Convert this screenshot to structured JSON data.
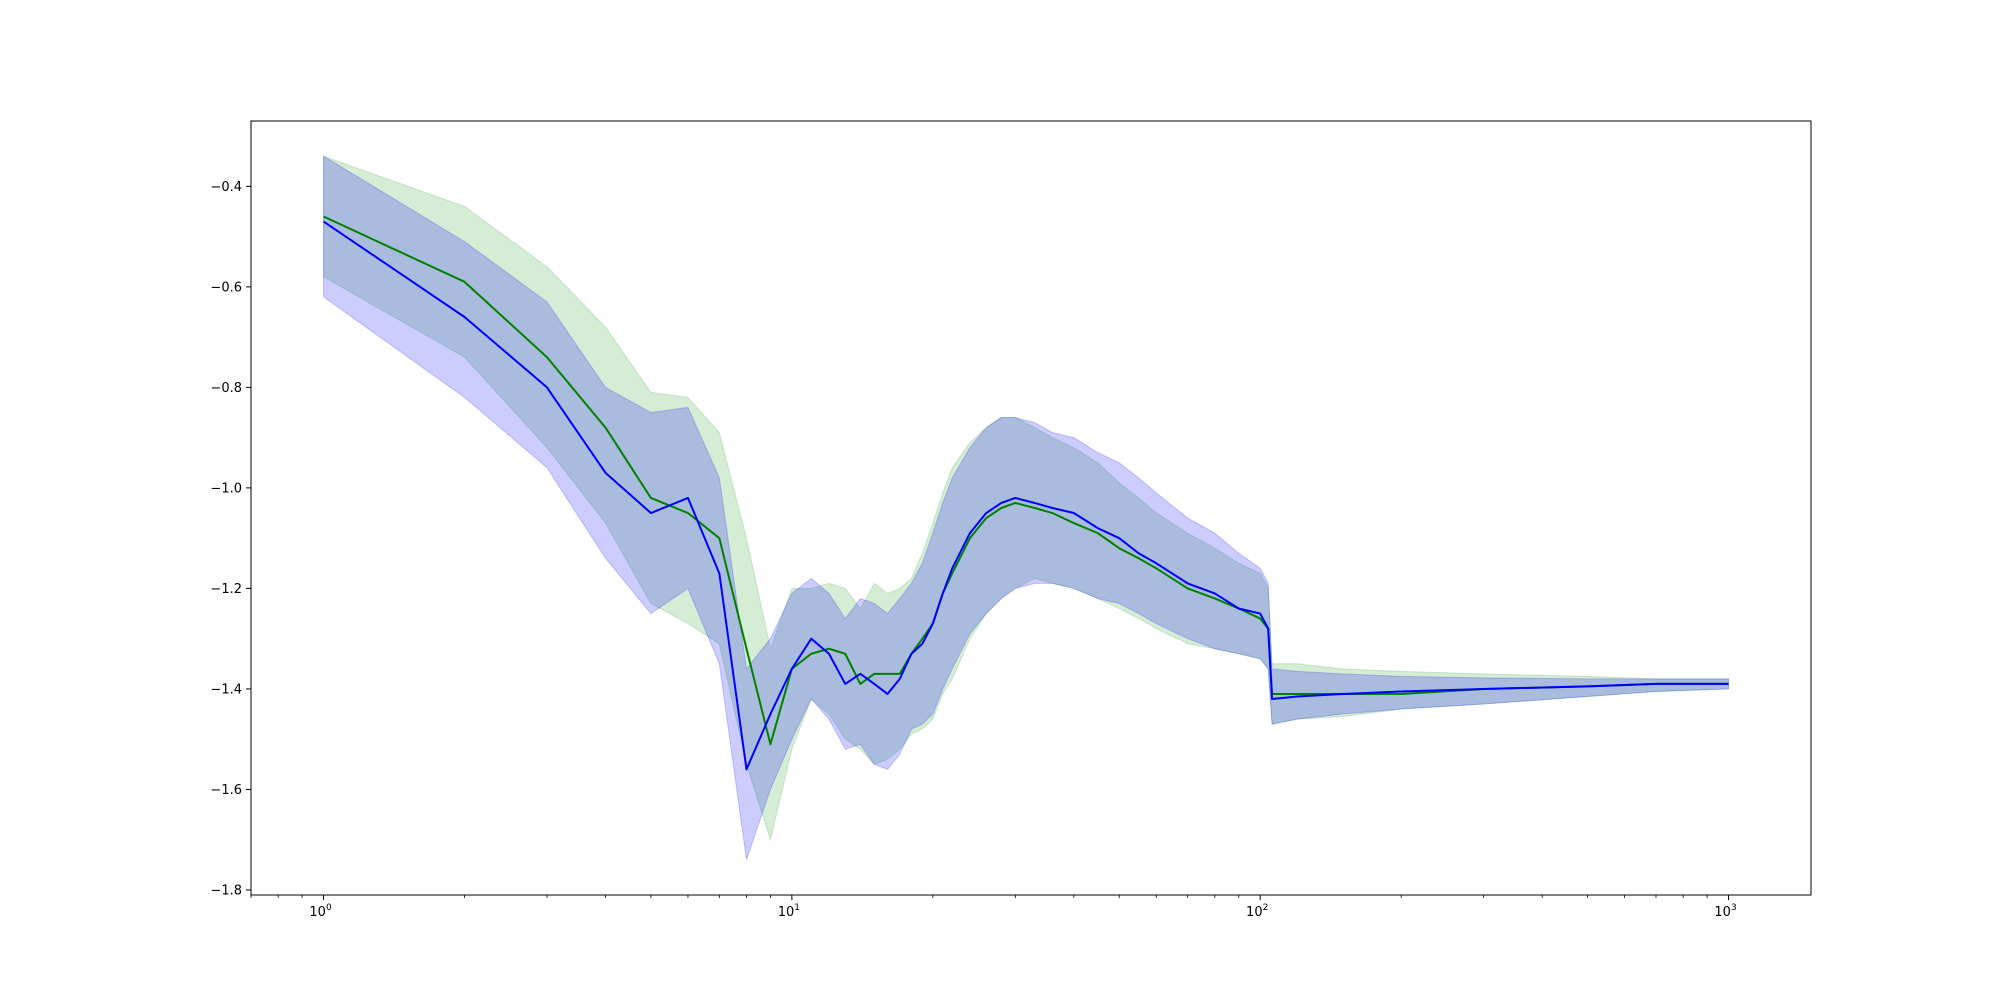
{
  "chart_data": {
    "type": "line",
    "title": "",
    "xlabel": "",
    "ylabel": "",
    "xscale": "log",
    "xlim": [
      0.7,
      1500
    ],
    "ylim": [
      -1.81,
      -0.27
    ],
    "grid": false,
    "legend": "none",
    "x_ticks": [
      {
        "value": 1,
        "base": "10",
        "exp": "0"
      },
      {
        "value": 10,
        "base": "10",
        "exp": "1"
      },
      {
        "value": 100,
        "base": "10",
        "exp": "2"
      },
      {
        "value": 1000,
        "base": "10",
        "exp": "3"
      }
    ],
    "y_ticks": [
      {
        "value": -0.4,
        "label": "−0.4"
      },
      {
        "value": -0.6,
        "label": "−0.6"
      },
      {
        "value": -0.8,
        "label": "−0.8"
      },
      {
        "value": -1.0,
        "label": "−1.0"
      },
      {
        "value": -1.2,
        "label": "−1.2"
      },
      {
        "value": -1.4,
        "label": "−1.4"
      },
      {
        "value": -1.6,
        "label": "−1.6"
      },
      {
        "value": -1.8,
        "label": "−1.8"
      }
    ],
    "series": [
      {
        "color": "#008000",
        "band_color": "#2ca02c",
        "x": [
          1,
          2,
          3,
          4,
          5,
          6,
          7,
          8,
          9,
          10,
          11,
          12,
          13,
          14,
          15,
          16,
          17,
          18,
          19,
          20,
          21,
          22,
          24,
          26,
          28,
          30,
          33,
          36,
          40,
          45,
          50,
          55,
          60,
          70,
          80,
          90,
          100,
          104,
          106,
          120,
          150,
          200,
          300,
          500,
          700,
          1000
        ],
        "y": [
          -0.46,
          -0.59,
          -0.74,
          -0.88,
          -1.02,
          -1.05,
          -1.1,
          -1.32,
          -1.51,
          -1.36,
          -1.33,
          -1.32,
          -1.33,
          -1.39,
          -1.37,
          -1.37,
          -1.37,
          -1.33,
          -1.3,
          -1.27,
          -1.21,
          -1.17,
          -1.1,
          -1.06,
          -1.04,
          -1.03,
          -1.04,
          -1.05,
          -1.07,
          -1.09,
          -1.12,
          -1.14,
          -1.16,
          -1.2,
          -1.22,
          -1.24,
          -1.26,
          -1.28,
          -1.41,
          -1.41,
          -1.41,
          -1.41,
          -1.4,
          -1.395,
          -1.39,
          -1.39
        ],
        "upper": [
          -0.34,
          -0.44,
          -0.56,
          -0.68,
          -0.81,
          -0.82,
          -0.89,
          -1.1,
          -1.32,
          -1.2,
          -1.2,
          -1.19,
          -1.2,
          -1.24,
          -1.19,
          -1.21,
          -1.2,
          -1.18,
          -1.13,
          -1.07,
          -1.01,
          -0.96,
          -0.91,
          -0.88,
          -0.86,
          -0.86,
          -0.88,
          -0.9,
          -0.92,
          -0.95,
          -0.99,
          -1.02,
          -1.05,
          -1.09,
          -1.12,
          -1.15,
          -1.17,
          -1.2,
          -1.35,
          -1.35,
          -1.36,
          -1.365,
          -1.37,
          -1.375,
          -1.38,
          -1.38
        ],
        "lower": [
          -0.58,
          -0.74,
          -0.92,
          -1.07,
          -1.23,
          -1.27,
          -1.31,
          -1.55,
          -1.7,
          -1.52,
          -1.42,
          -1.45,
          -1.5,
          -1.52,
          -1.55,
          -1.54,
          -1.52,
          -1.49,
          -1.48,
          -1.46,
          -1.41,
          -1.38,
          -1.3,
          -1.25,
          -1.22,
          -1.2,
          -1.18,
          -1.19,
          -1.2,
          -1.22,
          -1.24,
          -1.26,
          -1.28,
          -1.31,
          -1.32,
          -1.33,
          -1.34,
          -1.36,
          -1.47,
          -1.46,
          -1.455,
          -1.44,
          -1.43,
          -1.415,
          -1.405,
          -1.4
        ]
      },
      {
        "color": "#0000ff",
        "band_color": "#0000ff",
        "x": [
          1,
          2,
          3,
          4,
          5,
          6,
          7,
          8,
          9,
          10,
          11,
          12,
          13,
          14,
          15,
          16,
          17,
          18,
          19,
          20,
          21,
          22,
          24,
          26,
          28,
          30,
          33,
          36,
          40,
          45,
          50,
          55,
          60,
          70,
          80,
          90,
          100,
          104,
          106,
          120,
          150,
          200,
          300,
          500,
          700,
          1000
        ],
        "y": [
          -0.47,
          -0.66,
          -0.8,
          -0.97,
          -1.05,
          -1.02,
          -1.17,
          -1.56,
          -1.45,
          -1.36,
          -1.3,
          -1.33,
          -1.39,
          -1.37,
          -1.39,
          -1.41,
          -1.38,
          -1.33,
          -1.31,
          -1.27,
          -1.21,
          -1.16,
          -1.09,
          -1.05,
          -1.03,
          -1.02,
          -1.03,
          -1.04,
          -1.05,
          -1.08,
          -1.1,
          -1.13,
          -1.15,
          -1.19,
          -1.21,
          -1.24,
          -1.25,
          -1.28,
          -1.42,
          -1.415,
          -1.41,
          -1.405,
          -1.4,
          -1.395,
          -1.39,
          -1.39
        ],
        "upper": [
          -0.34,
          -0.51,
          -0.63,
          -0.8,
          -0.85,
          -0.84,
          -0.98,
          -1.36,
          -1.3,
          -1.21,
          -1.18,
          -1.21,
          -1.26,
          -1.22,
          -1.23,
          -1.25,
          -1.22,
          -1.19,
          -1.15,
          -1.09,
          -1.03,
          -0.98,
          -0.92,
          -0.88,
          -0.86,
          -0.86,
          -0.87,
          -0.89,
          -0.9,
          -0.93,
          -0.95,
          -0.98,
          -1.01,
          -1.06,
          -1.09,
          -1.13,
          -1.16,
          -1.19,
          -1.36,
          -1.365,
          -1.37,
          -1.375,
          -1.378,
          -1.38,
          -1.38,
          -1.38
        ],
        "lower": [
          -0.62,
          -0.82,
          -0.96,
          -1.14,
          -1.25,
          -1.2,
          -1.35,
          -1.74,
          -1.6,
          -1.5,
          -1.42,
          -1.46,
          -1.52,
          -1.51,
          -1.55,
          -1.56,
          -1.53,
          -1.48,
          -1.47,
          -1.45,
          -1.4,
          -1.36,
          -1.29,
          -1.25,
          -1.22,
          -1.2,
          -1.19,
          -1.19,
          -1.2,
          -1.22,
          -1.23,
          -1.25,
          -1.27,
          -1.3,
          -1.32,
          -1.33,
          -1.34,
          -1.36,
          -1.47,
          -1.46,
          -1.45,
          -1.44,
          -1.43,
          -1.415,
          -1.405,
          -1.4
        ]
      }
    ]
  }
}
